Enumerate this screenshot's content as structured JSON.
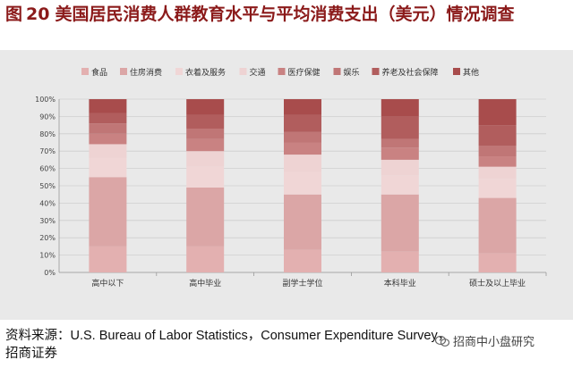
{
  "header": {
    "figure_label": "图",
    "figure_number": "20",
    "title": "美国居民消费人群教育水平与平均消费支出（美元）情况调查"
  },
  "footer": {
    "source_label": "资料来源：",
    "source_text": "U.S. Bureau of Labor Statistics，Consumer Expenditure Survey，",
    "source_org": "招商证券",
    "watermark": "招商中小盘研究"
  },
  "colors": {
    "panel_bg": "#e9e9e9",
    "title": "#8b1a1a",
    "series": [
      "#e3b0b0",
      "#dba6a6",
      "#f0d6d6",
      "#eed3d3",
      "#c98282",
      "#c07676",
      "#b15d5d",
      "#a84c4c"
    ]
  },
  "chart_data": {
    "type": "bar",
    "stacked": true,
    "percent": true,
    "categories": [
      "高中以下",
      "高中毕业",
      "副学士学位",
      "本科毕业",
      "硕士及以上毕业"
    ],
    "series": [
      {
        "name": "食品",
        "values": [
          15,
          15,
          13,
          12,
          11
        ]
      },
      {
        "name": "住房消费",
        "values": [
          40,
          34,
          32,
          33,
          32
        ]
      },
      {
        "name": "衣着及服务",
        "values": [
          11,
          12,
          13,
          11,
          11
        ]
      },
      {
        "name": "交通",
        "values": [
          8,
          9,
          10,
          9,
          7
        ]
      },
      {
        "name": "医疗保健",
        "values": [
          6,
          7,
          7,
          7,
          6
        ]
      },
      {
        "name": "娱乐",
        "values": [
          6,
          6,
          6,
          5,
          6
        ]
      },
      {
        "name": "养老及社会保障",
        "values": [
          6,
          8,
          10,
          13,
          12
        ]
      },
      {
        "name": "其他",
        "values": [
          8,
          9,
          9,
          10,
          15
        ]
      }
    ],
    "yticks": [
      "0%",
      "10%",
      "20%",
      "30%",
      "40%",
      "50%",
      "60%",
      "70%",
      "80%",
      "90%",
      "100%"
    ],
    "ylim": [
      0,
      100
    ],
    "grid": true,
    "legend": "top"
  }
}
